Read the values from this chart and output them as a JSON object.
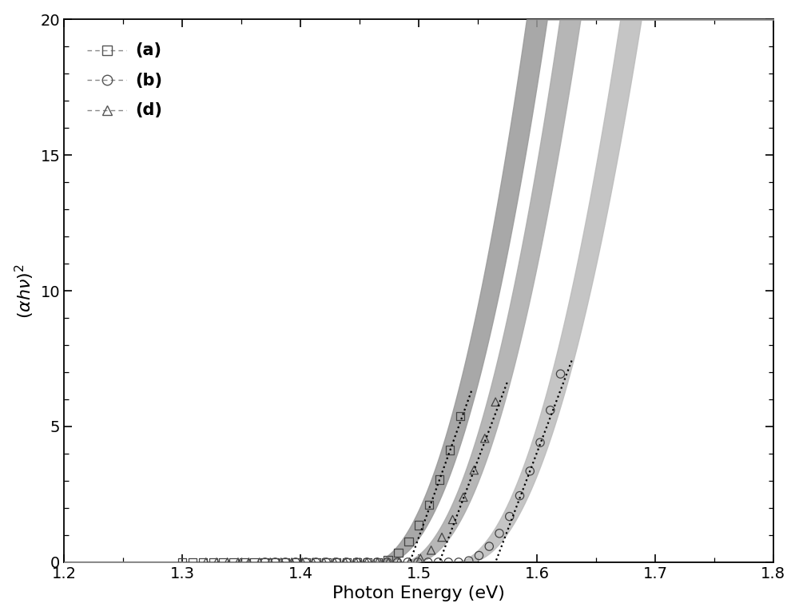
{
  "xlabel": "Photon Energy (eV)",
  "xlim": [
    1.2,
    1.8
  ],
  "ylim": [
    0,
    20
  ],
  "xticks": [
    1.2,
    1.3,
    1.4,
    1.5,
    1.6,
    1.7,
    1.8
  ],
  "yticks": [
    0,
    5,
    10,
    15,
    20
  ],
  "series_a": {
    "label": "(a)",
    "marker": "s",
    "Eg": 1.465,
    "A": 1100.0,
    "power": 2.0,
    "x_marker_start": 1.3,
    "x_marker_end": 1.535,
    "n_markers": 28,
    "fill_dEg": 0.006,
    "fill_dA": 0.04,
    "color": "#888888",
    "fill_color": "#999999",
    "dot_Eg": 1.465,
    "dot_slope_x": 1.52,
    "dot_x_end": 1.535
  },
  "series_d": {
    "label": "(d)",
    "marker": "^",
    "Eg": 1.49,
    "A": 1050.0,
    "power": 2.0,
    "x_marker_start": 1.32,
    "x_marker_end": 1.565,
    "n_markers": 28,
    "fill_dEg": 0.006,
    "fill_dA": 0.04,
    "color": "#888888",
    "fill_color": "#aaaaaa",
    "dot_Eg": 1.49,
    "dot_slope_x": 1.545,
    "dot_x_end": 1.565
  },
  "series_b": {
    "label": "(b)",
    "marker": "o",
    "Eg": 1.535,
    "A": 960.0,
    "power": 2.0,
    "x_marker_start": 1.37,
    "x_marker_end": 1.62,
    "n_markers": 30,
    "fill_dEg": 0.006,
    "fill_dA": 0.04,
    "color": "#888888",
    "fill_color": "#bbbbbb",
    "dot_Eg": 1.535,
    "dot_slope_x": 1.595,
    "dot_x_end": 1.62
  }
}
